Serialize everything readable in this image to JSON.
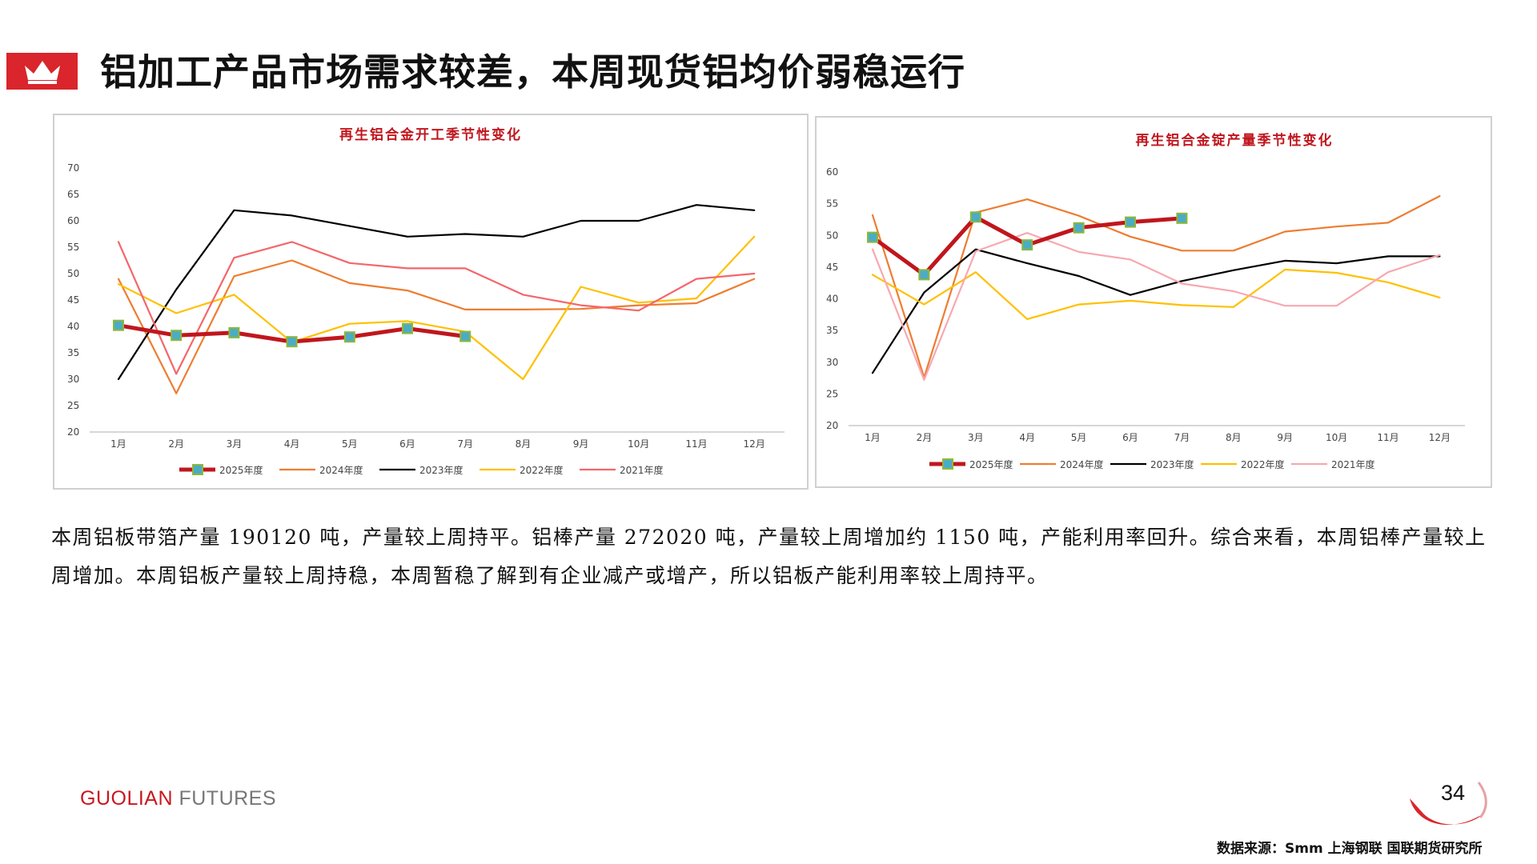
{
  "header": {
    "title": "铝加工产品市场需求较差，本周现货铝均价弱稳运行",
    "badge_icon": "crown-icon",
    "badge_color": "#d9252b"
  },
  "chart_data": [
    {
      "type": "line",
      "title": "再生铝合金开工季节性变化",
      "categories": [
        "1月",
        "2月",
        "3月",
        "4月",
        "5月",
        "6月",
        "7月",
        "8月",
        "9月",
        "10月",
        "11月",
        "12月"
      ],
      "ylim": [
        20,
        70
      ],
      "yticks": [
        20,
        25,
        30,
        35,
        40,
        45,
        50,
        55,
        60,
        65,
        70
      ],
      "grid": false,
      "legend_position": "bottom",
      "series": [
        {
          "name": "2025年度",
          "color": "#c0161d",
          "values": [
            40.2,
            38.3,
            38.8,
            37.1,
            38.0,
            39.6,
            38.1,
            null,
            null,
            null,
            null,
            null
          ],
          "highlight": true
        },
        {
          "name": "2024年度",
          "color": "#ed7d31",
          "values": [
            49.0,
            27.3,
            49.5,
            52.5,
            48.2,
            46.8,
            43.2,
            43.2,
            43.3,
            44.0,
            44.4,
            49.0
          ]
        },
        {
          "name": "2023年度",
          "color": "#000000",
          "values": [
            30.0,
            47.0,
            62.0,
            61.0,
            59.0,
            57.0,
            57.5,
            57.0,
            60.0,
            60.0,
            63.0,
            62.0
          ]
        },
        {
          "name": "2022年度",
          "color": "#ffc000",
          "values": [
            48.0,
            42.5,
            46.0,
            37.0,
            40.5,
            41.0,
            39.0,
            30.0,
            47.5,
            44.5,
            45.3,
            57.0
          ]
        },
        {
          "name": "2021年度",
          "color": "#f4666a",
          "values": [
            56.0,
            31.0,
            53.0,
            56.0,
            52.0,
            51.0,
            51.0,
            46.0,
            44.0,
            43.0,
            49.0,
            50.0
          ]
        }
      ]
    },
    {
      "type": "line",
      "title": "再生铝合金锭产量季节性变化",
      "categories": [
        "1月",
        "2月",
        "3月",
        "4月",
        "5月",
        "6月",
        "7月",
        "8月",
        "9月",
        "10月",
        "11月",
        "12月"
      ],
      "ylim": [
        20,
        60
      ],
      "yticks": [
        20,
        25,
        30,
        35,
        40,
        45,
        50,
        55,
        60
      ],
      "grid": false,
      "legend_position": "bottom",
      "series": [
        {
          "name": "2025年度",
          "color": "#c0161d",
          "values": [
            49.7,
            43.8,
            52.9,
            48.5,
            51.2,
            52.1,
            52.7,
            null,
            null,
            null,
            null,
            null
          ],
          "highlight": true
        },
        {
          "name": "2024年度",
          "color": "#ed7d31",
          "values": [
            53.2,
            27.6,
            53.6,
            55.7,
            53.1,
            49.8,
            47.6,
            47.6,
            50.6,
            51.4,
            52.0,
            56.2
          ]
        },
        {
          "name": "2023年度",
          "color": "#000000",
          "values": [
            28.3,
            41.0,
            47.8,
            45.6,
            43.6,
            40.6,
            42.8,
            44.5,
            46.0,
            45.6,
            46.7,
            46.7
          ]
        },
        {
          "name": "2022年度",
          "color": "#ffc000",
          "values": [
            43.8,
            39.1,
            44.2,
            36.8,
            39.1,
            39.7,
            39.0,
            38.7,
            44.6,
            44.1,
            42.6,
            40.2
          ]
        },
        {
          "name": "2021年度",
          "color": "#f7a8b0",
          "values": [
            47.8,
            27.2,
            47.5,
            50.4,
            47.4,
            46.2,
            42.4,
            41.2,
            38.9,
            38.9,
            44.2,
            46.9
          ]
        }
      ]
    }
  ],
  "body": {
    "paragraph": "本周铝板带箔产量 190120 吨，产量较上周持平。铝棒产量 272020 吨，产量较上周增加约 1150 吨，产能利用率回升。综合来看，本周铝棒产量较上周增加。本周铝板产量较上周持稳，本周暂稳了解到有企业减产或增产，所以铝板产能利用率较上周持平。"
  },
  "footer": {
    "brand_part1": "GUOLIAN",
    "brand_part2": " FUTURES",
    "page_number": "34",
    "source": "数据来源：Smm 上海钢联 国联期货研究所"
  }
}
